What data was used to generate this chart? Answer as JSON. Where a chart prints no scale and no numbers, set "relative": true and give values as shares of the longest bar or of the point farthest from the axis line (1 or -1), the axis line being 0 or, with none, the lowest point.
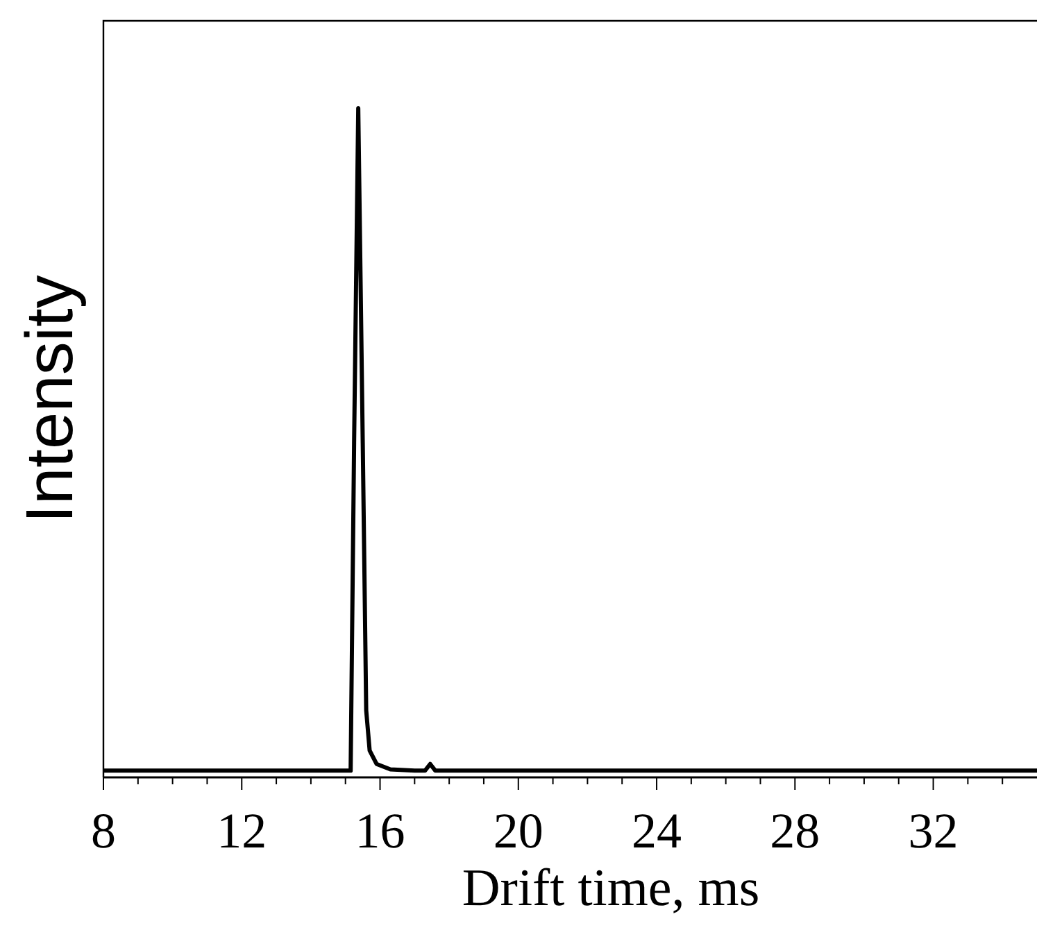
{
  "chart_data": {
    "type": "line",
    "xlabel": "Drift time, ms",
    "ylabel": "Intensity",
    "relative": true,
    "xlim": [
      8,
      35
    ],
    "xticks": [
      8,
      {
        "value": 9,
        "label": null
      },
      {
        "value": 10,
        "label": null
      },
      {
        "value": 11,
        "label": null
      },
      12,
      {
        "value": 13,
        "label": null
      },
      {
        "value": 14,
        "label": null
      },
      {
        "value": 15,
        "label": null
      },
      16,
      {
        "value": 17,
        "label": null
      },
      {
        "value": 18,
        "label": null
      },
      {
        "value": 19,
        "label": null
      },
      20,
      {
        "value": 21,
        "label": null
      },
      {
        "value": 22,
        "label": null
      },
      {
        "value": 23,
        "label": null
      },
      24,
      {
        "value": 25,
        "label": null
      },
      {
        "value": 26,
        "label": null
      },
      {
        "value": 27,
        "label": null
      },
      28,
      {
        "value": 29,
        "label": null
      },
      {
        "value": 30,
        "label": null
      },
      {
        "value": 31,
        "label": null
      },
      32,
      {
        "value": 33,
        "label": null
      },
      {
        "value": 34,
        "label": null
      }
    ],
    "series": [
      {
        "color": "#000000",
        "x": [
          8,
          15.15,
          15.25,
          15.37,
          15.5,
          15.6,
          15.7,
          15.9,
          16.3,
          17,
          17.3,
          17.45,
          17.6,
          35
        ],
        "values": [
          0.01,
          0.01,
          0.5,
          1,
          0.5,
          0.1,
          0.04,
          0.02,
          0.012,
          0.01,
          0.01,
          0.02,
          0.01,
          0.01
        ]
      }
    ],
    "grid": false,
    "marker": "none",
    "line_style": "solid"
  }
}
